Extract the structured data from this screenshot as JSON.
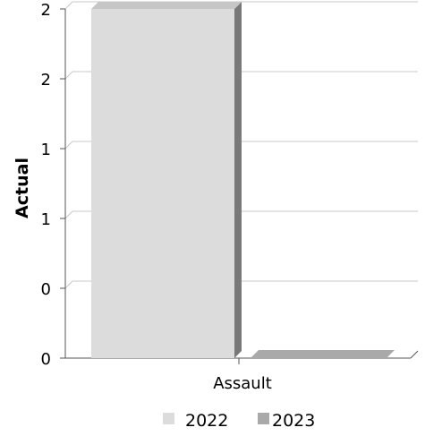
{
  "chart_data": {
    "type": "bar",
    "categories": [
      "Assault"
    ],
    "series": [
      {
        "name": "2022",
        "values": [
          2
        ]
      },
      {
        "name": "2023",
        "values": [
          0
        ]
      }
    ],
    "title": "",
    "xlabel": "",
    "ylabel": "Actual",
    "ylim": [
      0,
      2
    ],
    "y_tick_values": [
      0,
      0.4,
      0.8,
      1.2,
      1.6,
      2.0
    ],
    "y_tick_labels": [
      "0",
      "0",
      "1",
      "1",
      "2",
      "2"
    ],
    "grid": true,
    "legend_position": "bottom",
    "style": "3d",
    "colors": {
      "2022": "#dcdcdc",
      "2023": "#a9a9a9"
    }
  }
}
